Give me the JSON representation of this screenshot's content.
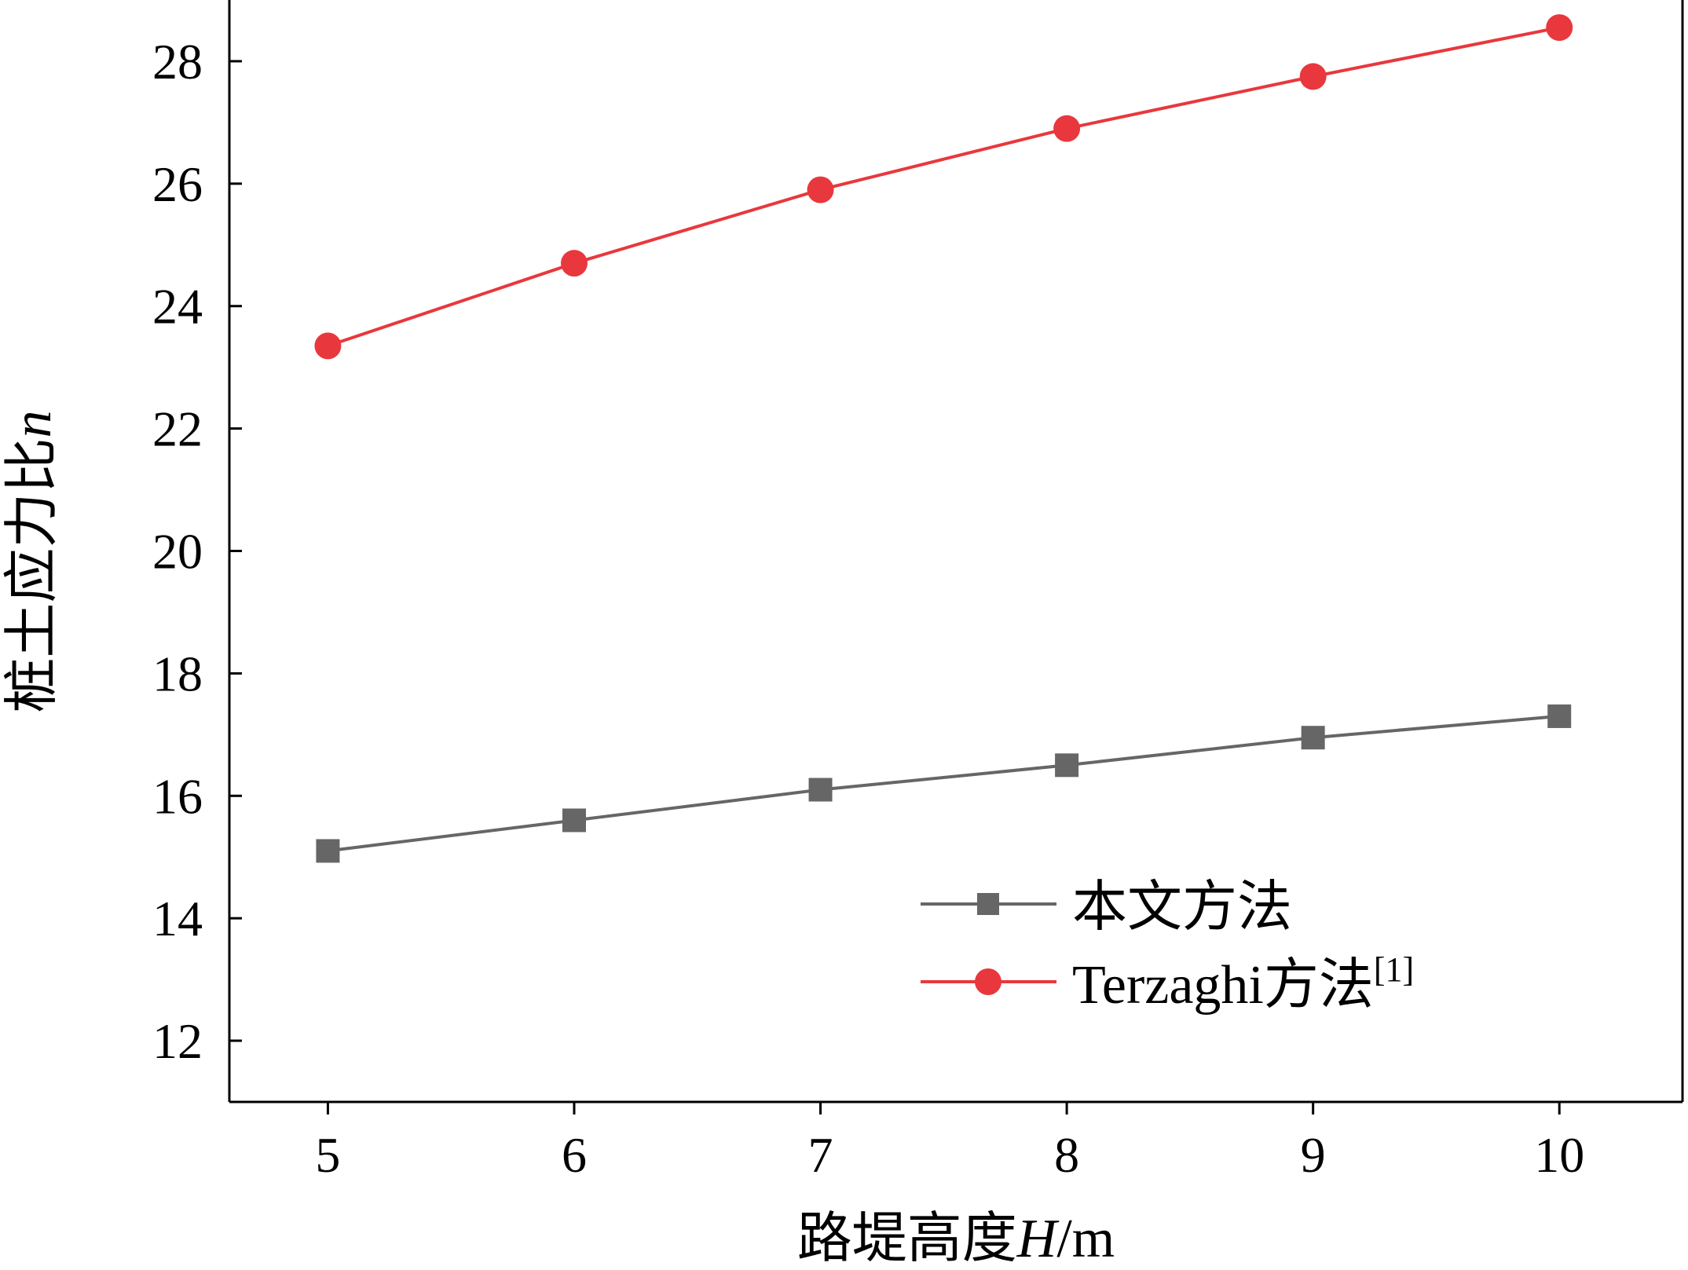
{
  "chart_data": {
    "type": "line",
    "xlabel_main": "路堤高度",
    "xlabel_var": "H",
    "xlabel_unit": "/m",
    "ylabel_main": "桩土应力比",
    "ylabel_var": "n",
    "x": [
      5,
      6,
      7,
      8,
      9,
      10
    ],
    "xlim": [
      4.6,
      10.5
    ],
    "ylim": [
      11,
      29
    ],
    "xticks": [
      "5",
      "6",
      "7",
      "8",
      "9",
      "10"
    ],
    "yticks": [
      "12",
      "14",
      "16",
      "18",
      "20",
      "22",
      "24",
      "26",
      "28"
    ],
    "grid": false,
    "legend_position": "bottom-right",
    "series": [
      {
        "name": "本文方法",
        "marker": "square",
        "color": "#666666",
        "values": [
          15.1,
          15.6,
          16.1,
          16.5,
          16.95,
          17.3
        ]
      },
      {
        "name": "Terzaghi方法",
        "name_sup": "[1]",
        "marker": "circle",
        "color": "#e8383d",
        "values": [
          23.35,
          24.7,
          25.9,
          26.9,
          27.75,
          28.55
        ]
      }
    ]
  }
}
